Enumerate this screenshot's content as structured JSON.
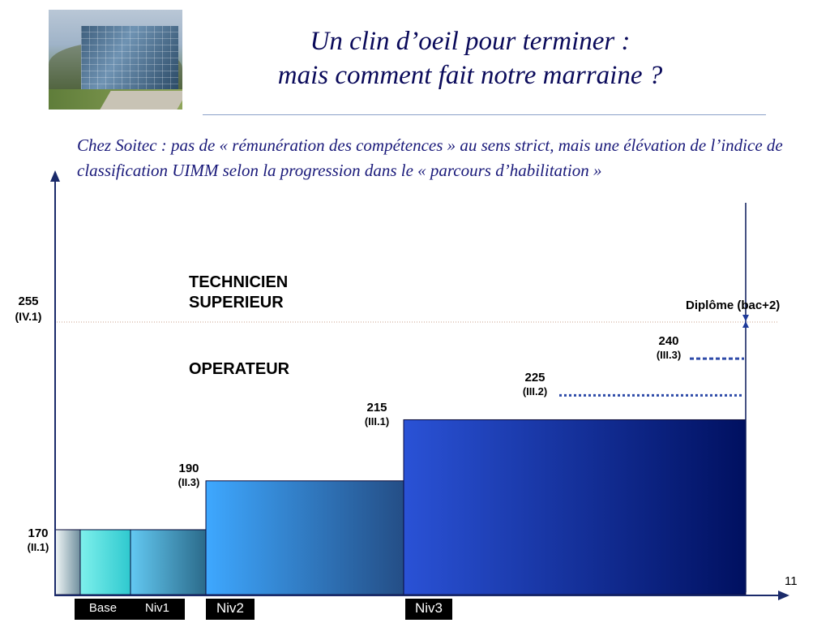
{
  "slide": {
    "title_line1": "Un clin d’oeil pour terminer :",
    "title_line2": "mais comment fait notre marraine ?",
    "intro": "Chez Soitec : pas de « rémunération des compétences » au sens strict, mais une élévation de l’indice de classification UIMM selon la progression dans le « parcours d’habilitation »",
    "page_number": "11"
  },
  "categories": {
    "tech_line1": "TECHNICIEN",
    "tech_line2": "SUPERIEUR",
    "operateur": "OPERATEUR"
  },
  "diplome_label": "Diplôme  (bac+2)",
  "colors": {
    "title": "#0a0a5a",
    "intro": "#1a1a7a",
    "niv3_dark": "#001060",
    "niv3_light": "#2a52d6",
    "dotted": "#2d4aa8"
  },
  "chart_data": {
    "type": "bar",
    "title": "",
    "ylim": [
      160,
      265
    ],
    "reference_line": {
      "value": 255,
      "label": "255",
      "class": "(IV.1)"
    },
    "steps": [
      {
        "tag": "",
        "value": 170,
        "label": "170",
        "class": "(II.1)"
      },
      {
        "tag": "Base",
        "value": 170,
        "label": "",
        "class": ""
      },
      {
        "tag": "Niv1",
        "value": 170,
        "label": "",
        "class": ""
      },
      {
        "tag": "Niv2",
        "value": 190,
        "label": "190",
        "class": "(II.3)"
      },
      {
        "tag": "Niv3",
        "value": 215,
        "label": "215",
        "class": "(III.1)"
      }
    ],
    "targets": [
      {
        "value": 225,
        "label": "225",
        "class": "(III.2)"
      },
      {
        "value": 240,
        "label": "240",
        "class": "(III.3)"
      }
    ]
  }
}
